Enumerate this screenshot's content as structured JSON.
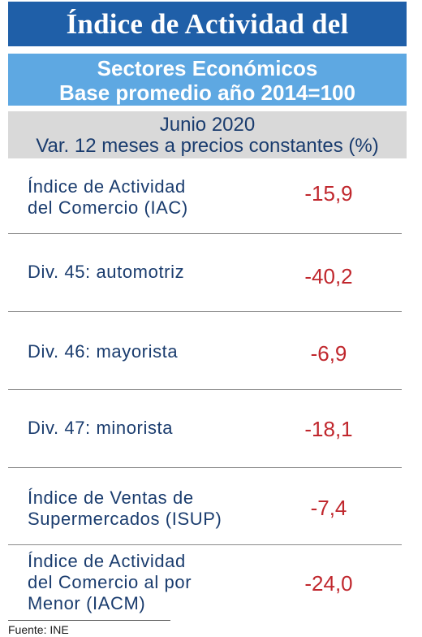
{
  "header": {
    "title": "Índice de Actividad del Comercio",
    "subtitle_line1": "Sectores Económicos",
    "subtitle_line2": "Base promedio año 2014=100",
    "period_line1": "Junio 2020",
    "period_line2": "Var. 12 meses a precios constantes (%)"
  },
  "rows": [
    {
      "label_line1": "Índice de Actividad",
      "label_line2": "del Comercio (IAC)",
      "label_line3": "",
      "value": "-15,9"
    },
    {
      "label_line1": "Div. 45: automotriz",
      "label_line2": "",
      "label_line3": "",
      "value": "-40,2"
    },
    {
      "label_line1": "Div. 46: mayorista",
      "label_line2": "",
      "label_line3": "",
      "value": "-6,9"
    },
    {
      "label_line1": "Div. 47: minorista",
      "label_line2": "",
      "label_line3": "",
      "value": "-18,1"
    },
    {
      "label_line1": "Índice de Ventas de",
      "label_line2": "Supermercados (ISUP)",
      "label_line3": "",
      "value": "-7,4"
    },
    {
      "label_line1": "Índice de Actividad",
      "label_line2": "del Comercio al por",
      "label_line3": "Menor (IACM)",
      "value": "-24,0"
    }
  ],
  "footer": {
    "source": "Fuente: INE"
  },
  "colors": {
    "title_bg": "#1f5fa8",
    "subtitle_bg": "#5ea8e2",
    "period_bg": "#d9d9d9",
    "label_text": "#1a3c6e",
    "value_text": "#c0272d"
  }
}
